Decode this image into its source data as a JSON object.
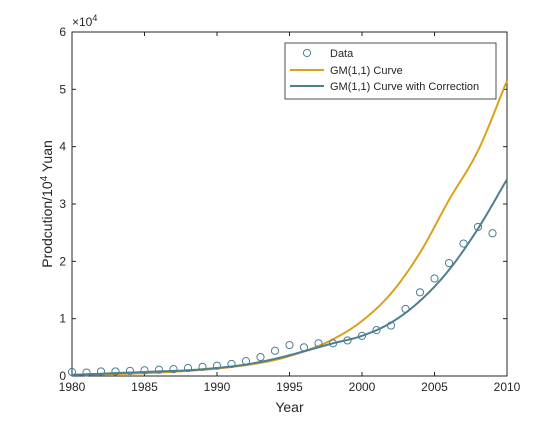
{
  "chart_data": {
    "type": "line",
    "title": "",
    "xlabel": "Year",
    "ylabel_base": "Prodcution/10",
    "ylabel_sup": "4",
    "ylabel_unit": " Yuan",
    "exponent_base": "×10",
    "exponent_power": "4",
    "xlim": [
      1980,
      2010
    ],
    "ylim": [
      0,
      6
    ],
    "xticks": [
      1980,
      1985,
      1990,
      1995,
      2000,
      2005,
      2010
    ],
    "yticks": [
      0,
      1,
      2,
      3,
      4,
      5,
      6
    ],
    "legend_position": "top-right",
    "grid": false,
    "series": [
      {
        "name": "Data",
        "kind": "marker",
        "color": "#4d7f91",
        "x": [
          1980,
          1981,
          1982,
          1983,
          1984,
          1985,
          1986,
          1987,
          1988,
          1989,
          1990,
          1991,
          1992,
          1993,
          1994,
          1995,
          1996,
          1997,
          1998,
          1999,
          2000,
          2001,
          2002,
          2003,
          2004,
          2005,
          2006,
          2007,
          2008,
          2009
        ],
        "y": [
          0.07,
          0.06,
          0.08,
          0.08,
          0.09,
          0.1,
          0.11,
          0.12,
          0.14,
          0.16,
          0.18,
          0.21,
          0.26,
          0.33,
          0.44,
          0.54,
          0.5,
          0.57,
          0.57,
          0.62,
          0.7,
          0.8,
          0.88,
          1.17,
          1.46,
          1.7,
          1.97,
          2.31,
          2.6,
          2.49
        ]
      },
      {
        "name": "GM(1,1) Curve",
        "kind": "line",
        "color": "#d9a21b",
        "x": [
          1980,
          1982,
          1984,
          1986,
          1988,
          1990,
          1992,
          1994,
          1996,
          1998,
          2000,
          2002,
          2004,
          2006,
          2008,
          2010
        ],
        "y": [
          0.02,
          0.03,
          0.04,
          0.06,
          0.09,
          0.13,
          0.19,
          0.28,
          0.43,
          0.64,
          0.96,
          1.44,
          2.15,
          3.07,
          3.93,
          5.15
        ]
      },
      {
        "name": "GM(1,1) Curve with Correction",
        "kind": "line",
        "color": "#4d7f91",
        "x": [
          1980,
          1982,
          1984,
          1986,
          1988,
          1990,
          1992,
          1994,
          1996,
          1998,
          2000,
          2002,
          2004,
          2006,
          2008,
          2010
        ],
        "y": [
          0.02,
          0.04,
          0.06,
          0.08,
          0.1,
          0.14,
          0.2,
          0.3,
          0.43,
          0.57,
          0.7,
          0.93,
          1.31,
          1.85,
          2.57,
          3.43
        ]
      }
    ]
  }
}
